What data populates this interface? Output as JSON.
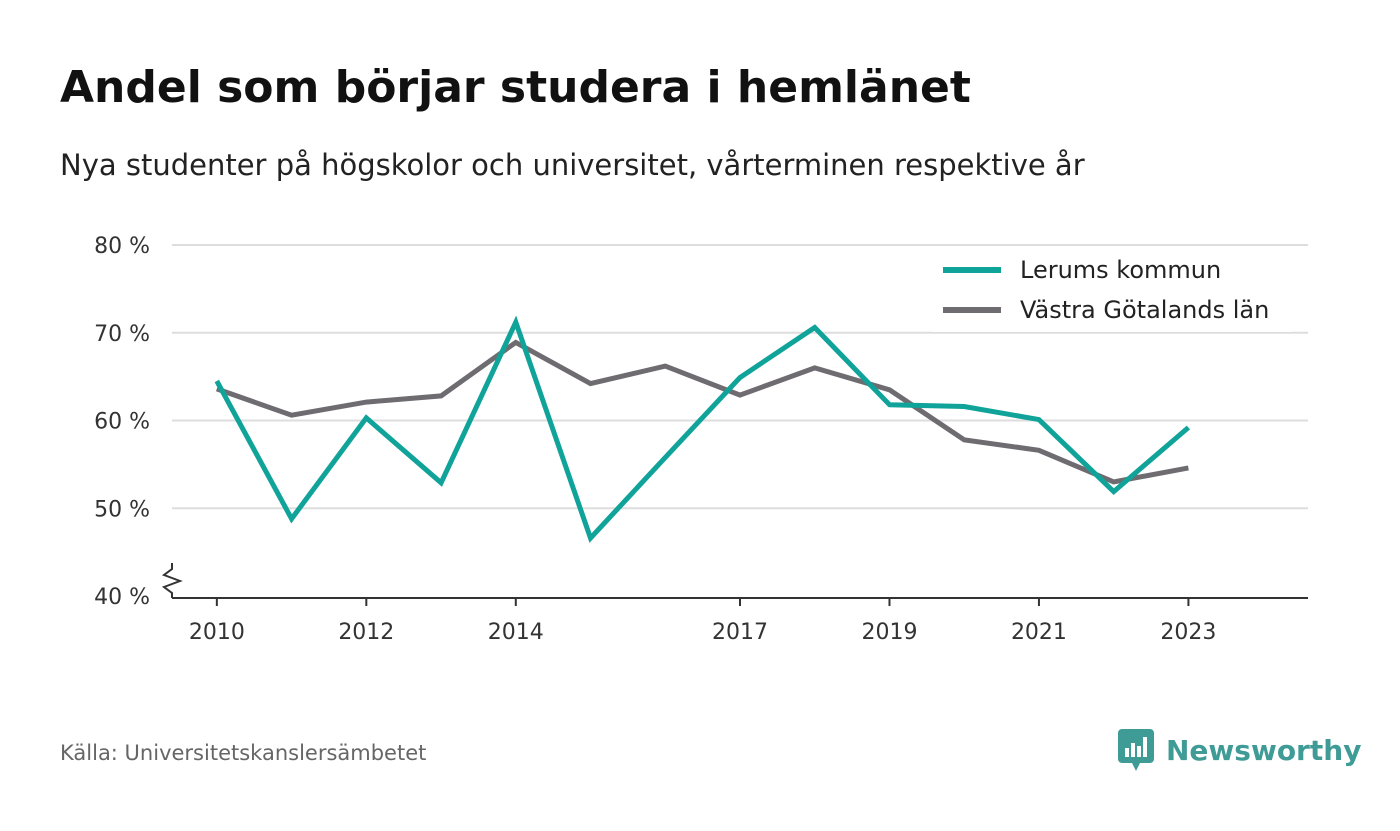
{
  "chart_data": {
    "type": "line",
    "title": "Andel som börjar studera i hemlänet",
    "subtitle": "Nya studenter på högskolor och universitet, vårterminen respektive år",
    "x": [
      2010,
      2011,
      2012,
      2013,
      2014,
      2015,
      2016,
      2017,
      2018,
      2019,
      2020,
      2021,
      2022,
      2023
    ],
    "x_tick_values": [
      2010,
      2012,
      2014,
      2017,
      2019,
      2021,
      2023
    ],
    "x_tick_labels": [
      "2010",
      "2012",
      "2014",
      "2017",
      "2019",
      "2021",
      "2023"
    ],
    "y_ticks": [
      40,
      50,
      60,
      70,
      80
    ],
    "y_tick_labels": [
      "40 %",
      "50 %",
      "60 %",
      "70 %",
      "80 %"
    ],
    "ylim": [
      40,
      80
    ],
    "xlim": [
      2009.4,
      2024.6
    ],
    "grid": true,
    "axis_break": true,
    "legend_position": "top-right",
    "series": [
      {
        "name": "Lerums kommun",
        "color": "#10a399",
        "values": [
          64.5,
          48.8,
          60.3,
          52.9,
          71.2,
          46.6,
          55.8,
          64.9,
          70.6,
          61.8,
          61.6,
          60.1,
          51.9,
          59.2
        ]
      },
      {
        "name": "Västra Götalands län",
        "color": "#6e6c70",
        "values": [
          63.6,
          60.6,
          62.1,
          62.8,
          68.9,
          64.2,
          66.2,
          62.9,
          66.0,
          63.5,
          57.8,
          56.6,
          53.0,
          54.6
        ]
      }
    ]
  },
  "footer": {
    "source": "Källa: Universitetskanslersämbetet",
    "brand": "Newsworthy",
    "brand_icon": "bar-chart-speech-bubble-icon",
    "brand_color": "#3f9b96"
  }
}
